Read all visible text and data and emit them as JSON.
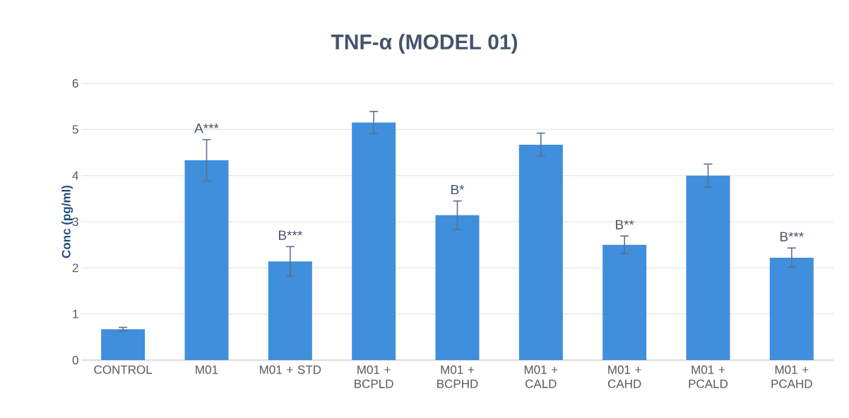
{
  "chart_data": {
    "type": "bar",
    "title": "TNF-α (MODEL 01)",
    "ylabel": "Conc (pg/ml)",
    "categories": [
      "CONTROL",
      "M01",
      "M01 + STD",
      "M01 + BCPLD",
      "M01 + BCPHD",
      "M01 + CALD",
      "M01 + CAHD",
      "M01 + PCALD",
      "M01 + PCAHD"
    ],
    "values": [
      0.67,
      4.33,
      2.14,
      5.15,
      3.14,
      4.67,
      2.5,
      4.0,
      2.22
    ],
    "errors": [
      0.04,
      0.45,
      0.32,
      0.24,
      0.31,
      0.25,
      0.19,
      0.25,
      0.21
    ],
    "color": "#3f8fdc",
    "ylim": [
      0,
      6
    ],
    "yticks": [
      0,
      1,
      2,
      3,
      4,
      5,
      6
    ],
    "grid": "y",
    "annotations": [
      {
        "text": "A***",
        "x": "M01",
        "y": 4.78
      },
      {
        "text": "B***",
        "x": "M01 + STD",
        "y": 2.46
      },
      {
        "text": "B*",
        "x": "M01 + BCPHD",
        "y": 3.45
      },
      {
        "text": "B**",
        "x": "M01 + CAHD",
        "y": 2.69
      },
      {
        "text": "B***",
        "x": "M01 + PCAHD",
        "y": 2.43
      }
    ]
  }
}
